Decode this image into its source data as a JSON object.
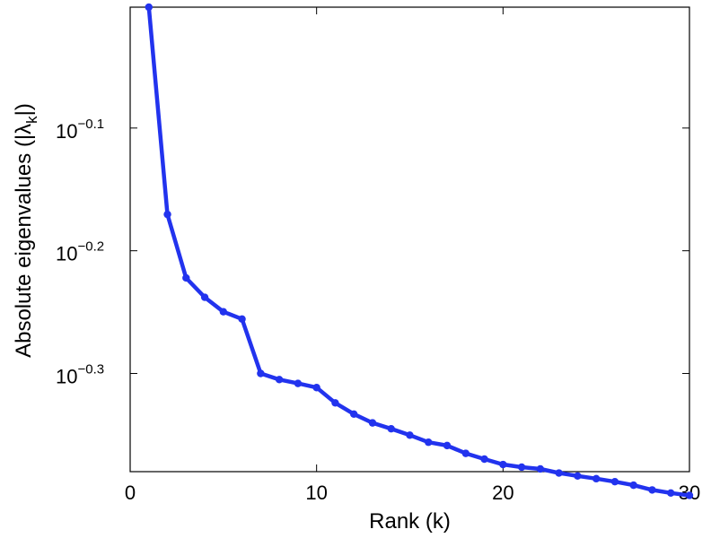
{
  "chart_data": {
    "type": "line",
    "xlabel": "Rank (k)",
    "ylabel": "Absolute eigenvalues (|λ_k|)",
    "ylabel_parts": {
      "main": "Absolute eigenvalues (|λ",
      "sub": "k",
      "close": "|)"
    },
    "xlim": [
      0,
      30
    ],
    "ylim_log10": [
      -0.38,
      -0.0015
    ],
    "y_scale": "log",
    "grid": false,
    "x_ticks": [
      {
        "value": 0,
        "label": "0"
      },
      {
        "value": 10,
        "label": "10"
      },
      {
        "value": 20,
        "label": "20"
      },
      {
        "value": 30,
        "label": "30"
      }
    ],
    "y_ticks": [
      {
        "log10": -0.1,
        "base": "10",
        "exp": "−0.1"
      },
      {
        "log10": -0.2,
        "base": "10",
        "exp": "−0.2"
      },
      {
        "log10": -0.3,
        "base": "10",
        "exp": "−0.3"
      }
    ],
    "series": [
      {
        "color": "#2233ee",
        "x": [
          1,
          2,
          3,
          4,
          5,
          6,
          7,
          8,
          9,
          10,
          11,
          12,
          13,
          14,
          15,
          16,
          17,
          18,
          19,
          20,
          21,
          22,
          23,
          24,
          25,
          26,
          27,
          28,
          29,
          30
        ],
        "y": [
          0.9966,
          0.6755,
          0.5996,
          0.5782,
          0.5627,
          0.5551,
          0.5012,
          0.4955,
          0.4919,
          0.4881,
          0.4743,
          0.4644,
          0.4568,
          0.4518,
          0.4464,
          0.4405,
          0.4378,
          0.4314,
          0.4268,
          0.4225,
          0.4204,
          0.419,
          0.4158,
          0.4135,
          0.4114,
          0.4091,
          0.4064,
          0.4028,
          0.4005,
          0.3987
        ]
      }
    ]
  }
}
